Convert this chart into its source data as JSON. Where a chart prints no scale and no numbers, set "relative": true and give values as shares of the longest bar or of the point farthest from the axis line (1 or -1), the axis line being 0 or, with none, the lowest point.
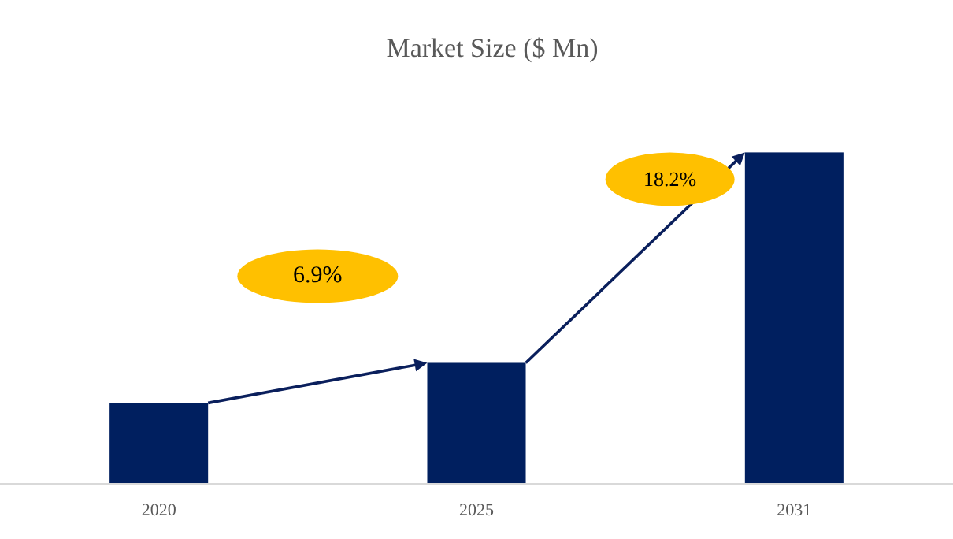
{
  "chart_data": {
    "type": "bar",
    "title": "Market Size ($ Mn)",
    "categories": [
      "2020",
      "2025",
      "2031"
    ],
    "values": [
      0.244,
      0.365,
      1
    ],
    "color": "#001f5f",
    "relative": true,
    "annotations": [
      "6.9%",
      "18.2%"
    ]
  }
}
